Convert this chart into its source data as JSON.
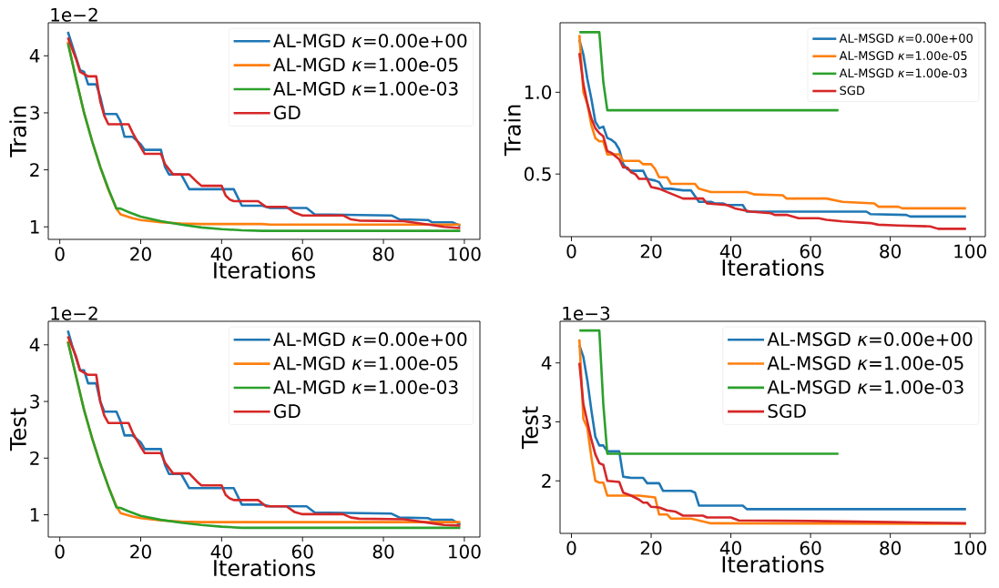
{
  "chart_data": [
    {
      "type": "line",
      "xlabel": "Iterations",
      "ylabel": "Train",
      "xlim": [
        -2.85,
        103.85
      ],
      "xticks": [
        0,
        20,
        40,
        60,
        80,
        100
      ],
      "ylim": [
        0.78,
        4.58
      ],
      "yticks": [
        1,
        2,
        3,
        4
      ],
      "legend": "top right",
      "marker": "none",
      "line_style": "solid",
      "annotations": [
        "1e−2"
      ],
      "series": [
        {
          "name": "AL-MGD *κ*=0.00e+00",
          "color": "#1f77b4",
          "x": [
            2,
            3,
            5,
            6,
            7,
            9,
            10,
            11,
            14,
            15,
            16,
            18,
            20,
            21,
            25,
            26,
            27,
            30,
            32,
            43,
            45,
            50,
            52,
            61,
            63,
            82,
            84,
            91,
            92,
            97,
            99
          ],
          "values": [
            4.42,
            4.2,
            3.75,
            3.72,
            3.5,
            3.5,
            3.28,
            2.98,
            2.98,
            2.85,
            2.58,
            2.58,
            2.45,
            2.35,
            2.35,
            2.05,
            1.92,
            1.92,
            1.66,
            1.66,
            1.37,
            1.37,
            1.33,
            1.33,
            1.22,
            1.2,
            1.13,
            1.12,
            1.08,
            1.08,
            1.02
          ]
        },
        {
          "name": "AL-MGD *κ*=1.00e-05",
          "color": "#ff7f0e",
          "x": [
            2,
            4,
            6,
            8,
            10,
            12,
            14,
            15,
            18,
            20,
            25,
            30,
            35,
            50,
            52,
            99
          ],
          "values": [
            4.25,
            3.6,
            3.0,
            2.5,
            2.05,
            1.65,
            1.32,
            1.22,
            1.15,
            1.12,
            1.08,
            1.06,
            1.05,
            1.05,
            1.04,
            1.04
          ]
        },
        {
          "name": "AL-MGD *κ*=1.00e-03",
          "color": "#2ca02c",
          "x": [
            2,
            4,
            6,
            8,
            10,
            12,
            14,
            15,
            17,
            20,
            25,
            30,
            35,
            40,
            45,
            50,
            99
          ],
          "values": [
            4.22,
            3.6,
            3.0,
            2.5,
            2.05,
            1.67,
            1.32,
            1.32,
            1.26,
            1.18,
            1.1,
            1.04,
            0.99,
            0.96,
            0.94,
            0.93,
            0.93
          ]
        },
        {
          "name": "GD",
          "color": "#d62728",
          "x": [
            2,
            4,
            5,
            7,
            9,
            10,
            11,
            12,
            17,
            18,
            20,
            21,
            25,
            26,
            28,
            32,
            34,
            35,
            40,
            41,
            42,
            43,
            49,
            51,
            56,
            58,
            60,
            70,
            72,
            74,
            85,
            92,
            95,
            99
          ],
          "values": [
            4.32,
            3.95,
            3.72,
            3.64,
            3.64,
            3.2,
            2.95,
            2.8,
            2.8,
            2.65,
            2.4,
            2.28,
            2.28,
            2.1,
            1.92,
            1.92,
            1.78,
            1.72,
            1.72,
            1.55,
            1.48,
            1.45,
            1.45,
            1.35,
            1.35,
            1.25,
            1.2,
            1.2,
            1.13,
            1.11,
            1.1,
            1.03,
            1.0,
            0.98
          ]
        }
      ]
    },
    {
      "type": "line",
      "xlabel": "Iterations",
      "ylabel": "Train",
      "xlim": [
        -2.85,
        103.85
      ],
      "xticks": [
        0,
        20,
        40,
        60,
        80,
        100
      ],
      "ylim": [
        0.117,
        1.425
      ],
      "yticks": [
        0.5,
        {
          "value": 1,
          "label": "1.0"
        }
      ],
      "legend": "top right",
      "marker": "none",
      "line_style": "solid",
      "series": [
        {
          "name": "AL-MSGD *κ*=0.00e+00",
          "color": "#1f77b4",
          "x": [
            2,
            3,
            4,
            5,
            6,
            7,
            8,
            9,
            10,
            11,
            12,
            13,
            14,
            15,
            18,
            19,
            21,
            22,
            23,
            25,
            28,
            30,
            32,
            35,
            36,
            38,
            39,
            43,
            44,
            74,
            75,
            84,
            85,
            99
          ],
          "values": [
            1.32,
            1.23,
            1.08,
            0.96,
            0.82,
            0.78,
            0.79,
            0.72,
            0.71,
            0.69,
            0.65,
            0.56,
            0.53,
            0.52,
            0.52,
            0.47,
            0.46,
            0.45,
            0.41,
            0.41,
            0.4,
            0.4,
            0.33,
            0.33,
            0.32,
            0.32,
            0.31,
            0.31,
            0.27,
            0.27,
            0.255,
            0.25,
            0.24,
            0.24
          ]
        },
        {
          "name": "AL-MSGD *κ*=1.00e-05",
          "color": "#ff7f0e",
          "x": [
            2,
            3,
            4,
            5,
            6,
            7,
            8,
            9,
            12,
            13,
            17,
            18,
            20,
            21,
            22,
            24,
            25,
            31,
            32,
            35,
            44,
            46,
            53,
            54,
            64,
            68,
            76,
            77,
            82,
            83,
            99
          ],
          "values": [
            1.35,
            1.0,
            0.93,
            0.8,
            0.72,
            0.7,
            0.7,
            0.62,
            0.62,
            0.58,
            0.58,
            0.56,
            0.56,
            0.53,
            0.48,
            0.48,
            0.44,
            0.44,
            0.41,
            0.39,
            0.39,
            0.375,
            0.37,
            0.35,
            0.35,
            0.33,
            0.32,
            0.3,
            0.3,
            0.29,
            0.29
          ]
        },
        {
          "name": "AL-MSGD *κ*=1.00e-03",
          "color": "#2ca02c",
          "x": [
            2,
            7,
            8,
            9,
            67
          ],
          "values": [
            1.367,
            1.367,
            1.063,
            0.89,
            0.89
          ]
        },
        {
          "name": "SGD",
          "color": "#d62728",
          "x": [
            2,
            3,
            4,
            5,
            6,
            7,
            8,
            9,
            10,
            11,
            12,
            13,
            14,
            15,
            16,
            17,
            19,
            20,
            22,
            24,
            26,
            28,
            33,
            34,
            39,
            41,
            43,
            45,
            50,
            51,
            54,
            57,
            62,
            64,
            68,
            75,
            77,
            82,
            90,
            92,
            99
          ],
          "values": [
            1.24,
            1.05,
            0.93,
            0.84,
            0.78,
            0.75,
            0.73,
            0.64,
            0.63,
            0.61,
            0.59,
            0.54,
            0.54,
            0.51,
            0.5,
            0.47,
            0.47,
            0.42,
            0.41,
            0.39,
            0.37,
            0.35,
            0.35,
            0.32,
            0.31,
            0.29,
            0.28,
            0.27,
            0.26,
            0.25,
            0.25,
            0.23,
            0.23,
            0.22,
            0.21,
            0.2,
            0.19,
            0.185,
            0.18,
            0.165,
            0.165
          ]
        }
      ]
    },
    {
      "type": "line",
      "xlabel": "Iterations",
      "ylabel": "Test",
      "xlim": [
        -2.85,
        103.85
      ],
      "xticks": [
        0,
        20,
        40,
        60,
        80,
        100
      ],
      "ylim": [
        0.607,
        4.415
      ],
      "yticks": [
        1,
        2,
        3,
        4
      ],
      "legend": "top right",
      "marker": "none",
      "line_style": "solid",
      "annotations": [
        "1e−2"
      ],
      "series": [
        {
          "name": "AL-MGD *κ*=0.00e+00",
          "color": "#1f77b4",
          "x": [
            2,
            3,
            5,
            6,
            7,
            9,
            10,
            11,
            14,
            15,
            16,
            18,
            20,
            21,
            25,
            26,
            27,
            30,
            32,
            43,
            45,
            50,
            52,
            61,
            63,
            82,
            84,
            91,
            92,
            97,
            99
          ],
          "values": [
            4.25,
            4.0,
            3.55,
            3.55,
            3.32,
            3.32,
            3.0,
            2.82,
            2.82,
            2.65,
            2.4,
            2.4,
            2.28,
            2.16,
            2.16,
            1.88,
            1.72,
            1.72,
            1.47,
            1.47,
            1.18,
            1.18,
            1.15,
            1.15,
            1.04,
            1.02,
            0.95,
            0.94,
            0.91,
            0.91,
            0.83
          ]
        },
        {
          "name": "AL-MGD *κ*=1.00e-05",
          "color": "#ff7f0e",
          "x": [
            2,
            4,
            6,
            8,
            10,
            12,
            14,
            15,
            18,
            20,
            25,
            30,
            35,
            99
          ],
          "values": [
            4.07,
            3.45,
            2.85,
            2.35,
            1.9,
            1.5,
            1.15,
            1.03,
            0.97,
            0.94,
            0.9,
            0.88,
            0.87,
            0.87
          ]
        },
        {
          "name": "AL-MGD *κ*=1.00e-03",
          "color": "#2ca02c",
          "x": [
            2,
            4,
            6,
            8,
            10,
            12,
            14,
            15,
            17,
            20,
            25,
            30,
            35,
            40,
            45,
            99
          ],
          "values": [
            4.05,
            3.45,
            2.85,
            2.35,
            1.9,
            1.5,
            1.13,
            1.12,
            1.06,
            0.98,
            0.91,
            0.86,
            0.82,
            0.79,
            0.77,
            0.77
          ]
        },
        {
          "name": "GD",
          "color": "#d62728",
          "x": [
            2,
            4,
            5,
            7,
            9,
            10,
            11,
            12,
            17,
            18,
            20,
            21,
            25,
            26,
            28,
            32,
            34,
            35,
            40,
            41,
            42,
            43,
            49,
            51,
            56,
            58,
            60,
            70,
            72,
            74,
            85,
            92,
            95,
            99
          ],
          "values": [
            4.15,
            3.8,
            3.55,
            3.47,
            3.47,
            3.0,
            2.75,
            2.62,
            2.62,
            2.45,
            2.2,
            2.09,
            2.09,
            1.92,
            1.73,
            1.73,
            1.58,
            1.52,
            1.52,
            1.35,
            1.29,
            1.26,
            1.26,
            1.15,
            1.15,
            1.05,
            1.01,
            1.01,
            0.95,
            0.93,
            0.92,
            0.85,
            0.82,
            0.81
          ]
        }
      ]
    },
    {
      "type": "line",
      "xlabel": "Iterations",
      "ylabel": "Test",
      "xlim": [
        -2.85,
        103.85
      ],
      "xticks": [
        0,
        20,
        40,
        60,
        80,
        100
      ],
      "ylim": [
        1.109,
        4.706
      ],
      "yticks": [
        2,
        3,
        4
      ],
      "legend": "top right",
      "marker": "none",
      "line_style": "solid",
      "annotations": [
        "1e−3"
      ],
      "series": [
        {
          "name": "AL-MSGD *κ*=0.00e+00",
          "color": "#1f77b4",
          "x": [
            2,
            3,
            4,
            5,
            6,
            7,
            8,
            9,
            12,
            13,
            14,
            15,
            18,
            19,
            22,
            23,
            30,
            31,
            32,
            43,
            44,
            99
          ],
          "values": [
            4.3,
            4.1,
            3.7,
            3.2,
            2.75,
            2.6,
            2.6,
            2.5,
            2.5,
            2.07,
            2.06,
            2.05,
            2.05,
            1.96,
            1.96,
            1.83,
            1.83,
            1.8,
            1.58,
            1.58,
            1.52,
            1.52
          ]
        },
        {
          "name": "AL-MSGD *κ*=1.00e-05",
          "color": "#ff7f0e",
          "x": [
            2,
            3,
            4,
            5,
            6,
            7,
            8,
            9,
            17,
            21,
            22,
            24,
            25,
            30,
            35,
            99
          ],
          "values": [
            4.4,
            3.05,
            2.9,
            2.4,
            2.0,
            1.97,
            1.97,
            1.75,
            1.75,
            1.72,
            1.43,
            1.43,
            1.36,
            1.36,
            1.28,
            1.27
          ]
        },
        {
          "name": "AL-MSGD *κ*=1.00e-03",
          "color": "#2ca02c",
          "x": [
            2,
            7,
            8,
            9,
            67
          ],
          "values": [
            4.55,
            4.55,
            3.3,
            2.46,
            2.46
          ]
        },
        {
          "name": "SGD",
          "color": "#d62728",
          "x": [
            2,
            3,
            4,
            5,
            6,
            7,
            8,
            9,
            12,
            13,
            15,
            17,
            18,
            19,
            20,
            22,
            24,
            26,
            28,
            33,
            34,
            40,
            42,
            60,
            80,
            99
          ],
          "values": [
            4.0,
            3.3,
            3.0,
            2.7,
            2.45,
            2.3,
            2.27,
            2.0,
            1.98,
            1.8,
            1.75,
            1.68,
            1.63,
            1.63,
            1.56,
            1.55,
            1.5,
            1.48,
            1.41,
            1.41,
            1.38,
            1.38,
            1.33,
            1.32,
            1.3,
            1.28
          ]
        }
      ]
    }
  ]
}
